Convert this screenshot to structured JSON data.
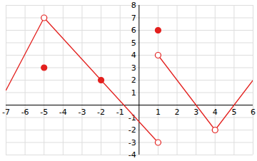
{
  "chart_data": {
    "type": "line",
    "xlim": [
      -7,
      6
    ],
    "ylim": [
      -4,
      8
    ],
    "xticks": [
      -7,
      -6,
      -5,
      -4,
      -3,
      -2,
      -1,
      1,
      2,
      3,
      4,
      5,
      6
    ],
    "yticks": [
      -4,
      -3,
      -2,
      -1,
      1,
      2,
      3,
      4,
      5,
      6,
      7,
      8
    ],
    "grid": true,
    "color": "#e3201e",
    "series": [
      {
        "x": [
          -7,
          -5
        ],
        "values": [
          1.2,
          7
        ]
      },
      {
        "x": [
          -5,
          1
        ],
        "values": [
          7,
          -3
        ]
      },
      {
        "x": [
          1,
          4,
          6
        ],
        "values": [
          4,
          -2,
          2
        ]
      },
      {
        "type": "scatter",
        "marker": "filled",
        "x": [
          -5,
          -2,
          1
        ],
        "values": [
          3,
          2,
          6
        ]
      },
      {
        "type": "scatter",
        "marker": "open",
        "x": [
          -5,
          1,
          1,
          4
        ],
        "values": [
          7,
          -3,
          4,
          -2
        ]
      }
    ]
  }
}
